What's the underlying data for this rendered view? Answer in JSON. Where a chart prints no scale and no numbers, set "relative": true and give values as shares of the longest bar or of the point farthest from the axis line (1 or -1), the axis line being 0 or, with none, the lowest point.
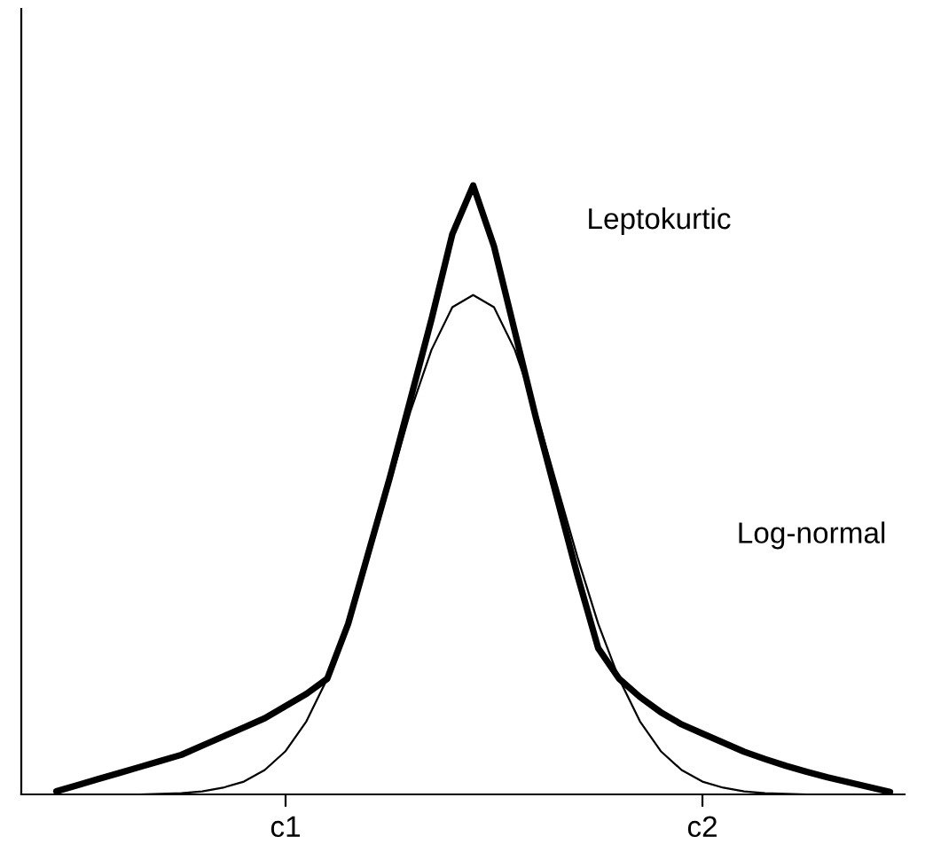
{
  "chart_data": {
    "type": "line",
    "relative": true,
    "categories": [
      null,
      null,
      null,
      null,
      null,
      null,
      null,
      null,
      null,
      null,
      null,
      "c1",
      null,
      null,
      null,
      null,
      null,
      null,
      null,
      null,
      null,
      null,
      null,
      null,
      null,
      null,
      null,
      null,
      null,
      null,
      null,
      "c2",
      null,
      null,
      null,
      null,
      null,
      null,
      null,
      null,
      null
    ],
    "series": [
      {
        "color": "#000000",
        "values": [
          0.005,
          0.015,
          0.025,
          0.035,
          0.045,
          0.055,
          0.065,
          0.08,
          0.095,
          0.11,
          0.125,
          0.145,
          0.165,
          0.19,
          0.28,
          0.4,
          0.52,
          0.65,
          0.78,
          0.92,
          1.0,
          0.9,
          0.76,
          0.62,
          0.49,
          0.36,
          0.24,
          0.19,
          0.16,
          0.135,
          0.115,
          0.1,
          0.085,
          0.07,
          0.058,
          0.047,
          0.037,
          0.028,
          0.02,
          0.012,
          0.004
        ]
      },
      {
        "color": "#000000",
        "values": [
          0,
          0,
          0,
          0,
          0,
          0.001,
          0.002,
          0.005,
          0.011,
          0.021,
          0.04,
          0.071,
          0.12,
          0.19,
          0.28,
          0.39,
          0.51,
          0.63,
          0.73,
          0.8,
          0.82,
          0.8,
          0.73,
          0.63,
          0.51,
          0.39,
          0.28,
          0.19,
          0.12,
          0.071,
          0.04,
          0.021,
          0.011,
          0.005,
          0.002,
          0.001,
          0,
          0,
          0,
          0,
          0
        ]
      }
    ],
    "annotations": [
      "Leptokurtic",
      "Log-normal"
    ],
    "grid": false,
    "legend": false,
    "marker": "none",
    "line_style": "solid"
  }
}
